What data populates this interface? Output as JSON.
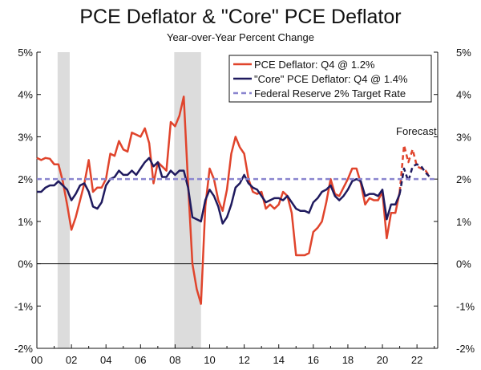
{
  "chart_data": {
    "type": "line",
    "title": "PCE Deflator & \"Core\" PCE Deflator",
    "subtitle": "Year-over-Year Percent Change",
    "ylim": [
      -2,
      5
    ],
    "xlim": [
      2000,
      2023.2
    ],
    "y_ticks": [
      "5%",
      "4%",
      "3%",
      "2%",
      "1%",
      "0%",
      "-1%",
      "-2%"
    ],
    "x_ticks": [
      "00",
      "02",
      "04",
      "06",
      "08",
      "10",
      "12",
      "14",
      "16",
      "18",
      "20",
      "22"
    ],
    "grid": false,
    "legend_position": "top-right",
    "recession_bands": [
      [
        2001.2,
        2001.9
      ],
      [
        2007.95,
        2009.5
      ]
    ],
    "annotation": "Forecast",
    "forecast_start": 2021.0,
    "series": [
      {
        "name": "PCE Deflator: Q4 @ 1.2%",
        "color": "#e0442c",
        "style": "solid",
        "points": [
          [
            2000.0,
            2.5
          ],
          [
            2000.25,
            2.45
          ],
          [
            2000.5,
            2.5
          ],
          [
            2000.75,
            2.48
          ],
          [
            2001.0,
            2.35
          ],
          [
            2001.25,
            2.35
          ],
          [
            2001.5,
            1.95
          ],
          [
            2001.75,
            1.4
          ],
          [
            2002.0,
            0.8
          ],
          [
            2002.25,
            1.1
          ],
          [
            2002.5,
            1.5
          ],
          [
            2002.75,
            1.9
          ],
          [
            2003.0,
            2.45
          ],
          [
            2003.25,
            1.7
          ],
          [
            2003.5,
            1.8
          ],
          [
            2003.75,
            1.8
          ],
          [
            2004.0,
            2.0
          ],
          [
            2004.25,
            2.6
          ],
          [
            2004.5,
            2.55
          ],
          [
            2004.75,
            2.9
          ],
          [
            2005.0,
            2.7
          ],
          [
            2005.25,
            2.65
          ],
          [
            2005.5,
            3.1
          ],
          [
            2005.75,
            3.05
          ],
          [
            2006.0,
            3.0
          ],
          [
            2006.25,
            3.2
          ],
          [
            2006.5,
            2.85
          ],
          [
            2006.75,
            1.9
          ],
          [
            2007.0,
            2.4
          ],
          [
            2007.25,
            2.3
          ],
          [
            2007.5,
            2.2
          ],
          [
            2007.75,
            3.35
          ],
          [
            2008.0,
            3.25
          ],
          [
            2008.25,
            3.5
          ],
          [
            2008.5,
            3.95
          ],
          [
            2008.75,
            1.9
          ],
          [
            2009.0,
            0.0
          ],
          [
            2009.25,
            -0.6
          ],
          [
            2009.5,
            -0.95
          ],
          [
            2009.75,
            1.35
          ],
          [
            2010.0,
            2.25
          ],
          [
            2010.25,
            2.0
          ],
          [
            2010.5,
            1.5
          ],
          [
            2010.75,
            1.25
          ],
          [
            2011.0,
            1.75
          ],
          [
            2011.25,
            2.6
          ],
          [
            2011.5,
            3.0
          ],
          [
            2011.75,
            2.75
          ],
          [
            2012.0,
            2.6
          ],
          [
            2012.25,
            2.0
          ],
          [
            2012.5,
            1.7
          ],
          [
            2012.75,
            1.65
          ],
          [
            2013.0,
            1.7
          ],
          [
            2013.25,
            1.3
          ],
          [
            2013.5,
            1.4
          ],
          [
            2013.75,
            1.3
          ],
          [
            2014.0,
            1.4
          ],
          [
            2014.25,
            1.7
          ],
          [
            2014.5,
            1.6
          ],
          [
            2014.75,
            1.2
          ],
          [
            2015.0,
            0.2
          ],
          [
            2015.25,
            0.2
          ],
          [
            2015.5,
            0.2
          ],
          [
            2015.75,
            0.25
          ],
          [
            2016.0,
            0.75
          ],
          [
            2016.25,
            0.85
          ],
          [
            2016.5,
            1.0
          ],
          [
            2016.75,
            1.45
          ],
          [
            2017.0,
            2.0
          ],
          [
            2017.25,
            1.65
          ],
          [
            2017.5,
            1.6
          ],
          [
            2017.75,
            1.8
          ],
          [
            2018.0,
            2.0
          ],
          [
            2018.25,
            2.25
          ],
          [
            2018.5,
            2.25
          ],
          [
            2018.75,
            1.9
          ],
          [
            2019.0,
            1.4
          ],
          [
            2019.25,
            1.55
          ],
          [
            2019.5,
            1.5
          ],
          [
            2019.75,
            1.5
          ],
          [
            2020.0,
            1.7
          ],
          [
            2020.25,
            0.6
          ],
          [
            2020.5,
            1.2
          ],
          [
            2020.75,
            1.2
          ],
          [
            2021.0,
            1.7
          ]
        ]
      },
      {
        "name": "\"Core\" PCE Deflator: Q4 @ 1.4%",
        "color": "#1f1a5e",
        "style": "solid",
        "points": [
          [
            2000.0,
            1.7
          ],
          [
            2000.25,
            1.7
          ],
          [
            2000.5,
            1.8
          ],
          [
            2000.75,
            1.85
          ],
          [
            2001.0,
            1.85
          ],
          [
            2001.25,
            1.95
          ],
          [
            2001.5,
            1.85
          ],
          [
            2001.75,
            1.75
          ],
          [
            2002.0,
            1.5
          ],
          [
            2002.25,
            1.65
          ],
          [
            2002.5,
            1.85
          ],
          [
            2002.75,
            1.9
          ],
          [
            2003.0,
            1.7
          ],
          [
            2003.25,
            1.35
          ],
          [
            2003.5,
            1.3
          ],
          [
            2003.75,
            1.45
          ],
          [
            2004.0,
            1.85
          ],
          [
            2004.25,
            2.0
          ],
          [
            2004.5,
            2.05
          ],
          [
            2004.75,
            2.2
          ],
          [
            2005.0,
            2.1
          ],
          [
            2005.25,
            2.1
          ],
          [
            2005.5,
            2.2
          ],
          [
            2005.75,
            2.1
          ],
          [
            2006.0,
            2.25
          ],
          [
            2006.25,
            2.4
          ],
          [
            2006.5,
            2.5
          ],
          [
            2006.75,
            2.3
          ],
          [
            2007.0,
            2.4
          ],
          [
            2007.25,
            2.05
          ],
          [
            2007.5,
            2.05
          ],
          [
            2007.75,
            2.2
          ],
          [
            2008.0,
            2.1
          ],
          [
            2008.25,
            2.2
          ],
          [
            2008.5,
            2.2
          ],
          [
            2008.75,
            1.8
          ],
          [
            2009.0,
            1.1
          ],
          [
            2009.25,
            1.05
          ],
          [
            2009.5,
            1.0
          ],
          [
            2009.75,
            1.5
          ],
          [
            2010.0,
            1.75
          ],
          [
            2010.25,
            1.6
          ],
          [
            2010.5,
            1.35
          ],
          [
            2010.75,
            0.95
          ],
          [
            2011.0,
            1.1
          ],
          [
            2011.25,
            1.4
          ],
          [
            2011.5,
            1.8
          ],
          [
            2011.75,
            1.9
          ],
          [
            2012.0,
            2.1
          ],
          [
            2012.25,
            1.9
          ],
          [
            2012.5,
            1.8
          ],
          [
            2012.75,
            1.75
          ],
          [
            2013.0,
            1.6
          ],
          [
            2013.25,
            1.45
          ],
          [
            2013.5,
            1.5
          ],
          [
            2013.75,
            1.55
          ],
          [
            2014.0,
            1.55
          ],
          [
            2014.25,
            1.5
          ],
          [
            2014.5,
            1.6
          ],
          [
            2014.75,
            1.45
          ],
          [
            2015.0,
            1.3
          ],
          [
            2015.25,
            1.25
          ],
          [
            2015.5,
            1.25
          ],
          [
            2015.75,
            1.2
          ],
          [
            2016.0,
            1.45
          ],
          [
            2016.25,
            1.55
          ],
          [
            2016.5,
            1.7
          ],
          [
            2016.75,
            1.75
          ],
          [
            2017.0,
            1.85
          ],
          [
            2017.25,
            1.6
          ],
          [
            2017.5,
            1.5
          ],
          [
            2017.75,
            1.6
          ],
          [
            2018.0,
            1.75
          ],
          [
            2018.25,
            1.95
          ],
          [
            2018.5,
            2.0
          ],
          [
            2018.75,
            1.95
          ],
          [
            2019.0,
            1.6
          ],
          [
            2019.25,
            1.65
          ],
          [
            2019.5,
            1.65
          ],
          [
            2019.75,
            1.6
          ],
          [
            2020.0,
            1.75
          ],
          [
            2020.25,
            1.05
          ],
          [
            2020.5,
            1.4
          ],
          [
            2020.75,
            1.4
          ],
          [
            2021.0,
            1.65
          ]
        ]
      },
      {
        "name": "PCE Deflator forecast",
        "color": "#e0442c",
        "style": "dashed",
        "points": [
          [
            2021.0,
            1.7
          ],
          [
            2021.25,
            2.8
          ],
          [
            2021.5,
            2.4
          ],
          [
            2021.75,
            2.7
          ],
          [
            2022.0,
            2.3
          ],
          [
            2022.25,
            2.25
          ],
          [
            2022.5,
            2.2
          ],
          [
            2022.75,
            2.05
          ]
        ]
      },
      {
        "name": "Core PCE Deflator forecast",
        "color": "#1f1a5e",
        "style": "dashed",
        "points": [
          [
            2021.0,
            1.65
          ],
          [
            2021.25,
            2.25
          ],
          [
            2021.5,
            1.95
          ],
          [
            2021.75,
            2.3
          ],
          [
            2022.0,
            2.35
          ],
          [
            2022.25,
            2.3
          ],
          [
            2022.5,
            2.15
          ],
          [
            2022.75,
            2.05
          ]
        ]
      },
      {
        "name": "Federal Reserve 2% Target Rate",
        "color": "#8a85cf",
        "style": "dashed",
        "points": [
          [
            2000.0,
            2.0
          ],
          [
            2023.0,
            2.0
          ]
        ]
      }
    ],
    "legend": [
      {
        "label": "PCE Deflator: Q4 @ 1.2%",
        "color": "#e0442c",
        "style": "solid"
      },
      {
        "label": "\"Core\" PCE Deflator: Q4 @ 1.4%",
        "color": "#1f1a5e",
        "style": "solid"
      },
      {
        "label": "Federal Reserve 2% Target Rate",
        "color": "#8a85cf",
        "style": "dashed"
      }
    ],
    "recession_color": "#dcdcdc"
  }
}
